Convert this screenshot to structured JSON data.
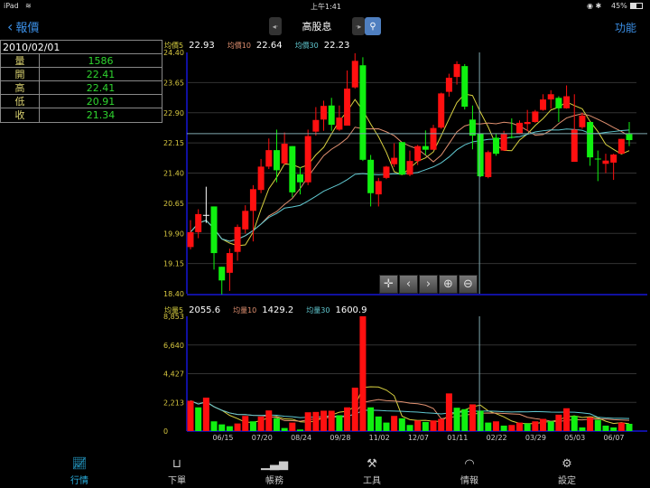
{
  "status_bar": {
    "device": "iPad",
    "wifi_icon": "wifi-icon",
    "time": "上午1:41",
    "battery": "45%"
  },
  "nav": {
    "back_label": "報價",
    "title": "高股息",
    "function_label": "功能"
  },
  "info_panel": {
    "date": "2010/02/01",
    "rows": [
      {
        "key": "量",
        "value": "1586"
      },
      {
        "key": "開",
        "value": "22.41"
      },
      {
        "key": "高",
        "value": "22.41"
      },
      {
        "key": "低",
        "value": "20.91"
      },
      {
        "key": "收",
        "value": "21.34"
      }
    ]
  },
  "price_legend": [
    {
      "label": "均價5",
      "value": "22.93",
      "color": "#d8d040"
    },
    {
      "label": "均價10",
      "value": "22.64",
      "color": "#e09070"
    },
    {
      "label": "均價30",
      "value": "22.23",
      "color": "#60c8d0"
    }
  ],
  "volume_legend": [
    {
      "label": "均量5",
      "value": "2055.6",
      "color": "#d8d040"
    },
    {
      "label": "均量10",
      "value": "1429.2",
      "color": "#e09070"
    },
    {
      "label": "均量30",
      "value": "1600.9",
      "color": "#60c8d0"
    }
  ],
  "colors": {
    "up": "#ff1010",
    "down": "#10f010",
    "accent": "#3b8fe6",
    "axis": "#1010a0",
    "tick": "#d8c840"
  },
  "chart_data": [
    {
      "type": "candlestick",
      "ylim": [
        18.4,
        24.4
      ],
      "yticks": [
        "24.40",
        "23.65",
        "22.90",
        "22.15",
        "21.40",
        "20.65",
        "19.90",
        "19.15",
        "18.40"
      ],
      "grid": true,
      "ohlc": [
        [
          19.56,
          20.23,
          19.5,
          19.93
        ],
        [
          19.93,
          20.5,
          19.78,
          20.38
        ],
        [
          20.36,
          21.06,
          20.16,
          20.36
        ],
        [
          20.57,
          20.57,
          19.0,
          19.41
        ],
        [
          19.07,
          19.07,
          18.38,
          18.73
        ],
        [
          18.92,
          19.52,
          18.47,
          19.41
        ],
        [
          19.44,
          20.12,
          19.22,
          20.06
        ],
        [
          20.0,
          20.6,
          19.9,
          20.46
        ],
        [
          20.46,
          21.1,
          19.7,
          21.0
        ],
        [
          20.98,
          21.75,
          20.9,
          21.56
        ],
        [
          21.56,
          22.26,
          21.5,
          21.97
        ],
        [
          21.97,
          22.48,
          21.17,
          21.47
        ],
        [
          21.64,
          22.41,
          21.6,
          22.13
        ],
        [
          22.07,
          22.07,
          20.8,
          20.92
        ],
        [
          21.37,
          21.55,
          20.87,
          21.17
        ],
        [
          21.17,
          22.48,
          21.1,
          22.32
        ],
        [
          22.43,
          23.04,
          22.33,
          22.72
        ],
        [
          22.73,
          23.2,
          22.45,
          23.07
        ],
        [
          23.08,
          23.27,
          22.45,
          22.6
        ],
        [
          22.48,
          23.08,
          22.45,
          22.78
        ],
        [
          22.58,
          23.95,
          22.58,
          23.5
        ],
        [
          23.53,
          24.38,
          23.5,
          24.19
        ],
        [
          24.08,
          24.28,
          21.7,
          21.73
        ],
        [
          21.73,
          21.85,
          20.57,
          20.9
        ],
        [
          20.87,
          21.28,
          20.57,
          21.2
        ],
        [
          21.28,
          21.58,
          21.25,
          21.56
        ],
        [
          21.62,
          22.14,
          21.55,
          21.78
        ],
        [
          22.17,
          22.17,
          21.36,
          21.36
        ],
        [
          21.36,
          21.96,
          21.32,
          21.7
        ],
        [
          21.7,
          22.1,
          21.6,
          22.07
        ],
        [
          22.07,
          22.46,
          21.85,
          21.98
        ],
        [
          21.98,
          22.6,
          21.98,
          22.52
        ],
        [
          22.53,
          23.4,
          22.5,
          23.38
        ],
        [
          23.42,
          23.87,
          23.3,
          23.77
        ],
        [
          23.79,
          24.18,
          23.6,
          24.11
        ],
        [
          24.06,
          24.11,
          22.98,
          23.05
        ],
        [
          22.73,
          23.08,
          21.99,
          22.33
        ],
        [
          22.38,
          22.38,
          21.3,
          21.32
        ],
        [
          21.3,
          21.96,
          21.27,
          21.92
        ],
        [
          22.28,
          22.37,
          21.83,
          21.88
        ],
        [
          21.96,
          22.45,
          21.95,
          22.37
        ],
        [
          22.3,
          22.76,
          22.26,
          22.29
        ],
        [
          22.38,
          22.71,
          22.37,
          22.65
        ],
        [
          22.62,
          22.97,
          22.44,
          22.67
        ],
        [
          22.67,
          22.97,
          22.65,
          22.93
        ],
        [
          22.97,
          23.36,
          22.95,
          23.23
        ],
        [
          23.23,
          23.46,
          23.0,
          23.36
        ],
        [
          23.27,
          23.31,
          22.67,
          23.01
        ],
        [
          23.01,
          23.58,
          23.0,
          23.31
        ],
        [
          21.68,
          23.36,
          21.68,
          22.48
        ],
        [
          22.54,
          22.9,
          22.5,
          22.83
        ],
        [
          22.67,
          22.67,
          21.58,
          21.79
        ],
        [
          21.76,
          21.96,
          21.2,
          21.75
        ],
        [
          21.63,
          21.88,
          21.4,
          21.71
        ],
        [
          21.66,
          21.88,
          21.23,
          21.86
        ],
        [
          21.88,
          22.25,
          21.88,
          22.25
        ],
        [
          22.37,
          22.67,
          22.07,
          22.22
        ]
      ]
    },
    {
      "type": "bar",
      "ylim": [
        0,
        8853
      ],
      "yticks": [
        "8,853",
        "6,640",
        "4,427",
        "2,213",
        "0"
      ],
      "grid": true,
      "xticks": [
        "06/15",
        "07/20",
        "08/24",
        "09/28",
        "11/02",
        "12/07",
        "01/11",
        "02/22",
        "03/29",
        "05/03",
        "06/07"
      ],
      "values": [
        2340,
        1830,
        2580,
        750,
        515,
        375,
        585,
        1170,
        750,
        1125,
        1590,
        985,
        235,
        655,
        117,
        1450,
        1475,
        1570,
        1570,
        1220,
        1830,
        3350,
        8853,
        1830,
        1125,
        655,
        1170,
        985,
        470,
        820,
        700,
        820,
        940,
        2905,
        1800,
        1690,
        2060,
        1570,
        655,
        750,
        420,
        470,
        655,
        585,
        750,
        940,
        750,
        1265,
        1760,
        1170,
        280,
        1055,
        870,
        420,
        280,
        655,
        560
      ],
      "up": [
        1,
        0,
        1,
        0,
        0,
        0,
        1,
        1,
        0,
        1,
        1,
        0,
        0,
        1,
        0,
        1,
        1,
        1,
        1,
        0,
        1,
        1,
        1,
        0,
        0,
        0,
        1,
        0,
        0,
        1,
        0,
        1,
        1,
        1,
        0,
        0,
        1,
        0,
        0,
        1,
        0,
        1,
        1,
        0,
        1,
        1,
        0,
        1,
        1,
        0,
        0,
        1,
        0,
        0,
        0,
        1,
        0
      ]
    }
  ],
  "zoom_controls": [
    "crosshair-icon",
    "chevron-left-icon",
    "chevron-right-icon",
    "zoom-in-icon",
    "zoom-out-icon"
  ],
  "tabs": [
    {
      "label": "行情",
      "icon": "chart-line-icon",
      "active": true
    },
    {
      "label": "下單",
      "icon": "order-icon"
    },
    {
      "label": "帳務",
      "icon": "account-bars-icon"
    },
    {
      "label": "工具",
      "icon": "tools-icon"
    },
    {
      "label": "情報",
      "icon": "news-icon"
    },
    {
      "label": "設定",
      "icon": "gear-icon"
    }
  ]
}
